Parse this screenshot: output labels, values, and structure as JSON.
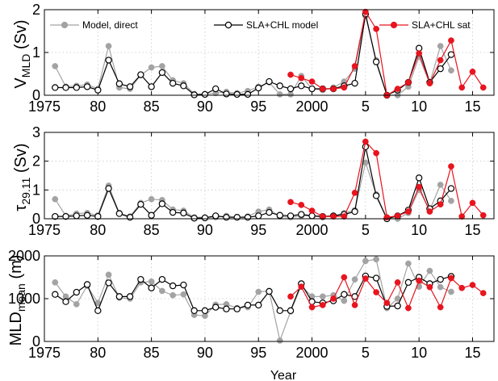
{
  "chart_data": {
    "type": "line",
    "xlabel": "Year",
    "legend": {
      "placement": "top",
      "entries": [
        "Model, direct",
        "SLA+CHL model",
        "SLA+CHL sat"
      ]
    },
    "colors": {
      "model_direct": "#a3a3a3",
      "sla_chl_model": "#000000",
      "sla_chl_sat": "#e8141e"
    },
    "grid": true,
    "panels": [
      {
        "id": "vmld",
        "ylabel_main": "V",
        "ylabel_sub": "MLD",
        "ylabel_unit": "(Sv)",
        "ylim": [
          0,
          2
        ],
        "yticks": [
          0,
          1,
          2
        ],
        "xlim": [
          1975,
          2017
        ],
        "xticks": [
          1975,
          1980,
          1985,
          1990,
          1995,
          2000,
          2005,
          2010,
          2015
        ],
        "xticklabels": [
          "1975",
          "80",
          "85",
          "90",
          "95",
          "2000",
          "5",
          "10",
          "15"
        ],
        "series": [
          {
            "name": "Model, direct",
            "x": [
              1976,
              1977,
              1978,
              1979,
              1980,
              1981,
              1982,
              1983,
              1984,
              1985,
              1986,
              1987,
              1988,
              1989,
              1990,
              1991,
              1992,
              1993,
              1994,
              1995,
              1996,
              1997,
              1998,
              1999,
              2000,
              2001,
              2002,
              2003,
              2004,
              2005,
              2006,
              2007,
              2008,
              2009,
              2010,
              2011,
              2012,
              2013
            ],
            "y": [
              0.68,
              0.2,
              0.22,
              0.25,
              0.15,
              1.15,
              0.18,
              0.15,
              0.47,
              0.65,
              0.68,
              0.35,
              0.28,
              0.03,
              0.02,
              0.05,
              0.08,
              0.05,
              0.1,
              0.2,
              0.3,
              0.02,
              0.02,
              0.45,
              0.15,
              0.12,
              0.18,
              0.32,
              0.62,
              1.85,
              0.82,
              0.0,
              0.0,
              0.2,
              0.9,
              0.28,
              1.15,
              0.58
            ]
          },
          {
            "name": "SLA+CHL model",
            "x": [
              1976,
              1977,
              1978,
              1979,
              1980,
              1981,
              1982,
              1983,
              1984,
              1985,
              1986,
              1987,
              1988,
              1989,
              1990,
              1991,
              1992,
              1993,
              1994,
              1995,
              1996,
              1997,
              1998,
              1999,
              2000,
              2001,
              2002,
              2003,
              2004,
              2005,
              2006,
              2007,
              2008,
              2009,
              2010,
              2011,
              2012,
              2013
            ],
            "y": [
              0.18,
              0.18,
              0.18,
              0.2,
              0.12,
              0.82,
              0.27,
              0.2,
              0.48,
              0.2,
              0.53,
              0.28,
              0.22,
              0.01,
              0.02,
              0.15,
              0.03,
              0.02,
              0.02,
              0.17,
              0.32,
              0.22,
              0.15,
              0.22,
              0.15,
              0.15,
              0.15,
              0.22,
              0.28,
              1.9,
              0.78,
              0.0,
              0.12,
              0.3,
              1.1,
              0.3,
              0.62,
              0.95
            ]
          },
          {
            "name": "SLA+CHL sat",
            "x": [
              1998,
              1999,
              2000,
              2001,
              2002,
              2003,
              2004,
              2005,
              2006,
              2007,
              2008,
              2009,
              2010,
              2011,
              2012,
              2013,
              2014,
              2015,
              2016
            ],
            "y": [
              0.48,
              0.4,
              0.32,
              0.15,
              0.15,
              0.18,
              0.68,
              1.95,
              1.55,
              0.0,
              0.15,
              0.3,
              0.98,
              0.28,
              0.82,
              1.28,
              0.18,
              0.55,
              0.18
            ]
          }
        ]
      },
      {
        "id": "tau",
        "ylabel_main": "τ",
        "ylabel_sub": "29.11",
        "ylabel_unit": "(Sv)",
        "ylim": [
          0,
          3
        ],
        "yticks": [
          0,
          1,
          2,
          3
        ],
        "xlim": [
          1975,
          2017
        ],
        "xticks": [
          1975,
          1980,
          1985,
          1990,
          1995,
          2000,
          2005,
          2010,
          2015
        ],
        "xticklabels": [
          "1975",
          "80",
          "85",
          "90",
          "95",
          "2000",
          "5",
          "10",
          "15"
        ],
        "series": [
          {
            "name": "Model, direct",
            "x": [
              1976,
              1977,
              1978,
              1979,
              1980,
              1981,
              1982,
              1983,
              1984,
              1985,
              1986,
              1987,
              1988,
              1989,
              1990,
              1991,
              1992,
              1993,
              1994,
              1995,
              1996,
              1997,
              1998,
              1999,
              2000,
              2001,
              2002,
              2003,
              2004,
              2005,
              2006,
              2007,
              2008,
              2009,
              2010,
              2011,
              2012,
              2013
            ],
            "y": [
              0.68,
              0.1,
              0.18,
              0.2,
              0.12,
              1.15,
              0.2,
              0.08,
              0.55,
              0.68,
              0.65,
              0.32,
              0.28,
              0.05,
              0.05,
              0.05,
              0.1,
              0.05,
              0.08,
              0.25,
              0.32,
              0.08,
              0.05,
              0.1,
              0.1,
              0.05,
              0.1,
              0.2,
              0.3,
              1.95,
              0.85,
              0.0,
              0.0,
              0.2,
              1.0,
              0.3,
              1.18,
              0.62
            ]
          },
          {
            "name": "SLA+CHL model",
            "x": [
              1976,
              1977,
              1978,
              1979,
              1980,
              1981,
              1982,
              1983,
              1984,
              1985,
              1986,
              1987,
              1988,
              1989,
              1990,
              1991,
              1992,
              1993,
              1994,
              1995,
              1996,
              1997,
              1998,
              1999,
              2000,
              2001,
              2002,
              2003,
              2004,
              2005,
              2006,
              2007,
              2008,
              2009,
              2010,
              2011,
              2012,
              2013
            ],
            "y": [
              0.08,
              0.08,
              0.1,
              0.12,
              0.08,
              1.05,
              0.18,
              0.05,
              0.5,
              0.12,
              0.52,
              0.22,
              0.2,
              0.02,
              0.03,
              0.1,
              0.05,
              0.05,
              0.05,
              0.1,
              0.22,
              0.12,
              0.1,
              0.15,
              0.1,
              0.08,
              0.1,
              0.15,
              0.25,
              2.5,
              0.8,
              0.0,
              0.1,
              0.3,
              1.42,
              0.35,
              0.62,
              1.05
            ]
          },
          {
            "name": "SLA+CHL sat",
            "x": [
              1998,
              1999,
              2000,
              2001,
              2002,
              2003,
              2004,
              2005,
              2006,
              2007,
              2008,
              2009,
              2010,
              2011,
              2012,
              2013,
              2014,
              2015,
              2016
            ],
            "y": [
              0.58,
              0.48,
              0.28,
              0.08,
              0.08,
              0.08,
              0.9,
              2.68,
              2.28,
              0.05,
              0.1,
              0.25,
              1.1,
              0.25,
              0.5,
              1.82,
              0.08,
              0.55,
              0.12
            ]
          }
        ]
      },
      {
        "id": "mld",
        "ylabel_main": "MLD",
        "ylabel_sub": "mean",
        "ylabel_unit": "(m)",
        "ylim": [
          0,
          2000
        ],
        "yticks": [
          0,
          1000,
          2000
        ],
        "xlim": [
          1975,
          2017
        ],
        "xticks": [
          1975,
          1980,
          1985,
          1990,
          1995,
          2000,
          2005,
          2010,
          2015
        ],
        "xticklabels": [
          "1975",
          "80",
          "85",
          "90",
          "95",
          "2000",
          "5",
          "10",
          "15"
        ],
        "series": [
          {
            "name": "Model, direct",
            "x": [
              1976,
              1977,
              1978,
              1979,
              1980,
              1981,
              1982,
              1983,
              1984,
              1985,
              1986,
              1987,
              1988,
              1989,
              1990,
              1991,
              1992,
              1993,
              1994,
              1995,
              1996,
              1997,
              1998,
              1999,
              2000,
              2001,
              2002,
              2003,
              2004,
              2005,
              2006,
              2007,
              2008,
              2009,
              2010,
              2011,
              2012,
              2013
            ],
            "y": [
              1380,
              1050,
              870,
              1300,
              900,
              1560,
              1020,
              1000,
              1380,
              1400,
              1180,
              1080,
              1100,
              620,
              600,
              860,
              870,
              780,
              800,
              1160,
              1180,
              20,
              700,
              1300,
              1050,
              1050,
              1080,
              950,
              1450,
              1880,
              1920,
              780,
              1000,
              1820,
              1280,
              1650,
              1270,
              1160
            ]
          },
          {
            "name": "SLA+CHL model",
            "x": [
              1976,
              1977,
              1978,
              1979,
              1980,
              1981,
              1982,
              1983,
              1984,
              1985,
              1986,
              1987,
              1988,
              1989,
              1990,
              1991,
              1992,
              1993,
              1994,
              1995,
              1996,
              1997,
              1998,
              1999,
              2000,
              2001,
              2002,
              2003,
              2004,
              2005,
              2006,
              2007,
              2008,
              2009,
              2010,
              2011,
              2012,
              2013
            ],
            "y": [
              1100,
              930,
              1150,
              1330,
              720,
              1370,
              1050,
              1050,
              1450,
              1250,
              1450,
              1300,
              1320,
              720,
              720,
              800,
              760,
              760,
              850,
              850,
              1170,
              720,
              720,
              1350,
              930,
              900,
              950,
              1100,
              1050,
              1530,
              1480,
              820,
              830,
              1380,
              1500,
              1350,
              1450,
              1520
            ]
          },
          {
            "name": "SLA+CHL sat",
            "x": [
              1998,
              1999,
              2000,
              2001,
              2002,
              2003,
              2004,
              2005,
              2006,
              2007,
              2008,
              2009,
              2010,
              2011,
              2012,
              2013,
              2014,
              2015,
              2016
            ],
            "y": [
              1050,
              1280,
              800,
              850,
              1000,
              1500,
              850,
              1470,
              1150,
              900,
              1380,
              780,
              1420,
              1270,
              800,
              1480,
              1250,
              1320,
              1130
            ]
          }
        ]
      }
    ]
  }
}
